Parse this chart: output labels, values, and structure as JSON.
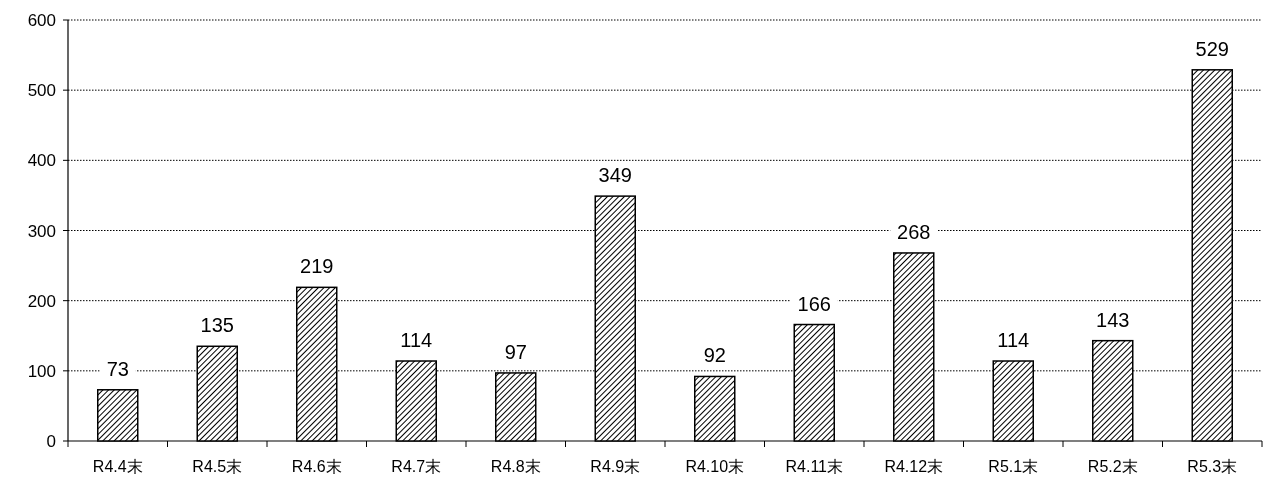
{
  "chart_data": {
    "type": "bar",
    "categories": [
      "R4.4末",
      "R4.5末",
      "R4.6末",
      "R4.7末",
      "R4.8末",
      "R4.9末",
      "R4.10末",
      "R4.11末",
      "R4.12末",
      "R5.1末",
      "R5.2末",
      "R5.3末"
    ],
    "values": [
      73,
      135,
      219,
      114,
      97,
      349,
      92,
      166,
      268,
      114,
      143,
      529
    ],
    "color": "#000000",
    "ylim": [
      0,
      600
    ],
    "yticks": [
      0,
      100,
      200,
      300,
      400,
      500,
      600
    ],
    "grid": "y",
    "data_labels": true
  }
}
